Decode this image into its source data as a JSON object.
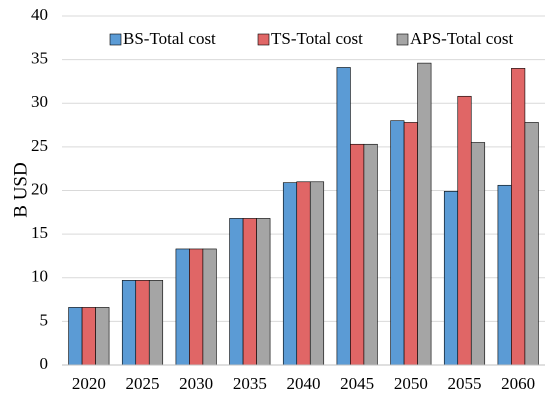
{
  "chart_data": {
    "type": "bar",
    "title": "",
    "xlabel": "",
    "ylabel": "B USD",
    "ylim": [
      0,
      40
    ],
    "yticks": [
      0,
      5,
      10,
      15,
      20,
      25,
      30,
      35,
      40
    ],
    "grid": true,
    "legend_position": "top",
    "categories": [
      "2020",
      "2025",
      "2030",
      "2035",
      "2040",
      "2045",
      "2050",
      "2055",
      "2060"
    ],
    "series": [
      {
        "name": "BS-Total cost",
        "color": "#5B9BD5",
        "values": [
          6.6,
          9.7,
          13.3,
          16.8,
          20.9,
          34.1,
          28.0,
          19.9,
          20.6
        ]
      },
      {
        "name": "TS-Total cost",
        "color": "#E06666",
        "values": [
          6.6,
          9.7,
          13.3,
          16.8,
          21.0,
          25.3,
          27.8,
          30.8,
          34.0
        ]
      },
      {
        "name": "APS-Total cost",
        "color": "#A5A5A5",
        "values": [
          6.6,
          9.7,
          13.3,
          16.8,
          21.0,
          25.3,
          34.6,
          25.5,
          27.8
        ]
      }
    ]
  }
}
